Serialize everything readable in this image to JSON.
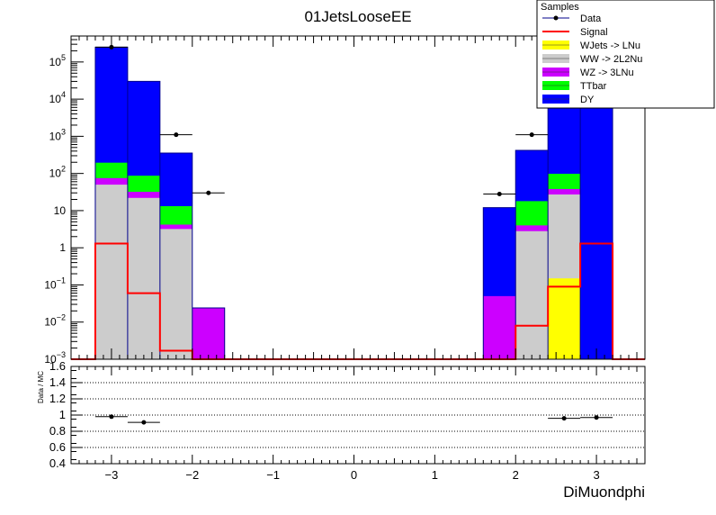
{
  "chart_data": {
    "type": "bar",
    "title": "01JetsLooseEE",
    "xlabel": "DiMuondphi",
    "ylabel": "",
    "ratio_ylabel": "Data / MC",
    "log_y": true,
    "xlim": [
      -3.5,
      3.6
    ],
    "ylim": [
      0.001,
      500000
    ],
    "ratio_ylim": [
      0.4,
      1.6
    ],
    "bin_edges": [
      -3.2,
      -2.8,
      -2.4,
      -2.0,
      -1.6,
      -1.2,
      -0.8,
      -0.4,
      0.0,
      0.4,
      0.8,
      1.2,
      1.6,
      2.0,
      2.4,
      2.8,
      3.2
    ],
    "x_ticks": [
      {
        "value": -3,
        "label": "−3"
      },
      {
        "value": -2,
        "label": "−2"
      },
      {
        "value": -1,
        "label": "−1"
      },
      {
        "value": 0,
        "label": "0"
      },
      {
        "value": 1,
        "label": "1"
      },
      {
        "value": 2,
        "label": "2"
      },
      {
        "value": 3,
        "label": "3"
      }
    ],
    "y_ticks": [
      {
        "value": 0.001,
        "base": "10",
        "exp": "−3"
      },
      {
        "value": 0.01,
        "base": "10",
        "exp": "−2"
      },
      {
        "value": 0.1,
        "base": "10",
        "exp": "−1"
      },
      {
        "value": 1,
        "base": "1",
        "exp": ""
      },
      {
        "value": 10,
        "base": "10",
        "exp": ""
      },
      {
        "value": 100,
        "base": "10",
        "exp": "2"
      },
      {
        "value": 1000,
        "base": "10",
        "exp": "3"
      },
      {
        "value": 10000,
        "base": "10",
        "exp": "4"
      },
      {
        "value": 100000,
        "base": "10",
        "exp": "5"
      }
    ],
    "ratio_ticks": [
      "0.4",
      "0.6",
      "0.8",
      "1",
      "1.2",
      "1.4",
      "1.6"
    ],
    "legend": {
      "title": "Samples",
      "placement": "top-right",
      "entries": [
        {
          "label": "Data",
          "kind": "marker",
          "color": "#00008b"
        },
        {
          "label": "Signal",
          "kind": "line",
          "color": "#ff0000"
        },
        {
          "label": "WJets -> LNu",
          "kind": "fill",
          "color": "#ffff00"
        },
        {
          "label": "WW -> 2L2Nu",
          "kind": "fill",
          "color": "#cccccc"
        },
        {
          "label": "WZ -> 3LNu",
          "kind": "fill",
          "color": "#cc00ff"
        },
        {
          "label": "TTbar",
          "kind": "fill",
          "color": "#00ff00"
        },
        {
          "label": "DY",
          "kind": "fill",
          "color": "#0000ff"
        }
      ]
    },
    "stack_series": [
      {
        "name": "WJets -> LNu",
        "color": "#ffff00",
        "values": [
          0,
          0,
          0,
          0,
          0,
          0,
          0,
          0,
          0,
          0,
          0,
          0,
          0,
          0,
          0.15,
          0
        ]
      },
      {
        "name": "WW -> 2L2Nu",
        "color": "#cccccc",
        "values": [
          50,
          22,
          3.2,
          0,
          0,
          0,
          0,
          0,
          0,
          0,
          0,
          0,
          0,
          2.8,
          27,
          0
        ]
      },
      {
        "name": "WZ -> 3LNu",
        "color": "#cc00ff",
        "values": [
          25,
          10,
          1.0,
          0.024,
          0,
          0,
          0,
          0,
          0,
          0,
          0,
          0,
          0.05,
          1.2,
          11,
          0
        ]
      },
      {
        "name": "TTbar",
        "color": "#00ff00",
        "values": [
          120,
          55,
          9,
          0,
          0,
          0,
          0,
          0,
          0,
          0,
          0,
          0,
          0,
          14,
          60,
          0
        ]
      },
      {
        "name": "DY",
        "color": "#0000ff",
        "values": [
          250000,
          30000,
          340,
          0,
          0,
          0,
          0,
          0,
          0,
          0,
          0,
          0,
          12,
          400,
          30000,
          250000
        ]
      }
    ],
    "signal": {
      "name": "Signal",
      "color": "#ff0000",
      "values": [
        1.3,
        0.06,
        0.0017,
        0.001,
        0.001,
        0.001,
        0.001,
        0.001,
        0.001,
        0.001,
        0.001,
        0.001,
        0.001,
        0.008,
        0.09,
        1.3
      ]
    },
    "data_points": [
      {
        "x": -3.0,
        "y": 250000,
        "xerr": 0.2
      },
      {
        "x": -2.2,
        "y": 1100,
        "xerr": 0.2
      },
      {
        "x": -1.8,
        "y": 30,
        "xerr": 0.2
      },
      {
        "x": 1.8,
        "y": 28,
        "xerr": 0.2
      },
      {
        "x": 2.2,
        "y": 1100,
        "xerr": 0.2
      }
    ],
    "ratio_points": [
      {
        "x": -3.0,
        "y": 0.98,
        "xerr": 0.2
      },
      {
        "x": -2.6,
        "y": 0.91,
        "xerr": 0.2
      },
      {
        "x": 2.6,
        "y": 0.96,
        "xerr": 0.2
      },
      {
        "x": 3.0,
        "y": 0.97,
        "xerr": 0.2
      }
    ]
  }
}
